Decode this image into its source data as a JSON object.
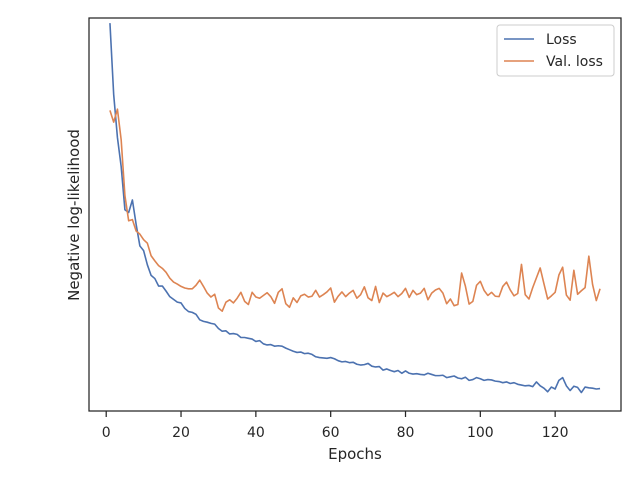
{
  "chart_data": {
    "type": "line",
    "title": "",
    "xlabel": "Epochs",
    "ylabel": "Negative log-likelihood",
    "xlim": [
      -4.6,
      137.6
    ],
    "ylim": [
      0.0,
      1.0
    ],
    "xticks": [
      0,
      20,
      40,
      60,
      80,
      100,
      120
    ],
    "yticks_shown": false,
    "grid": false,
    "legend_position": "top-right",
    "colors": {
      "loss": "#4c72b0",
      "val_loss": "#dd8452",
      "axes": "#262626"
    },
    "x": [
      1,
      2,
      3,
      4,
      5,
      6,
      7,
      8,
      9,
      10,
      11,
      12,
      13,
      14,
      15,
      16,
      17,
      18,
      19,
      20,
      21,
      22,
      23,
      24,
      25,
      26,
      27,
      28,
      29,
      30,
      31,
      32,
      33,
      34,
      35,
      36,
      37,
      38,
      39,
      40,
      41,
      42,
      43,
      44,
      45,
      46,
      47,
      48,
      49,
      50,
      51,
      52,
      53,
      54,
      55,
      56,
      57,
      58,
      59,
      60,
      61,
      62,
      63,
      64,
      65,
      66,
      67,
      68,
      69,
      70,
      71,
      72,
      73,
      74,
      75,
      76,
      77,
      78,
      79,
      80,
      81,
      82,
      83,
      84,
      85,
      86,
      87,
      88,
      89,
      90,
      91,
      92,
      93,
      94,
      95,
      96,
      97,
      98,
      99,
      100,
      101,
      102,
      103,
      104,
      105,
      106,
      107,
      108,
      109,
      110,
      111,
      112,
      113,
      114,
      115,
      116,
      117,
      118,
      119,
      120,
      121,
      122,
      123,
      124,
      125,
      126,
      127,
      128,
      129,
      130,
      131,
      132
    ],
    "series": [
      {
        "name": "Loss",
        "values": [
          0.987,
          0.805,
          0.696,
          0.622,
          0.512,
          0.505,
          0.537,
          0.475,
          0.42,
          0.408,
          0.372,
          0.345,
          0.337,
          0.318,
          0.318,
          0.305,
          0.291,
          0.284,
          0.277,
          0.275,
          0.261,
          0.253,
          0.251,
          0.246,
          0.232,
          0.228,
          0.226,
          0.223,
          0.221,
          0.21,
          0.203,
          0.204,
          0.196,
          0.197,
          0.195,
          0.187,
          0.187,
          0.185,
          0.183,
          0.177,
          0.179,
          0.171,
          0.168,
          0.169,
          0.165,
          0.166,
          0.165,
          0.16,
          0.156,
          0.152,
          0.149,
          0.15,
          0.146,
          0.147,
          0.144,
          0.138,
          0.136,
          0.135,
          0.134,
          0.136,
          0.133,
          0.128,
          0.125,
          0.126,
          0.123,
          0.124,
          0.119,
          0.117,
          0.118,
          0.121,
          0.114,
          0.112,
          0.113,
          0.104,
          0.107,
          0.103,
          0.1,
          0.103,
          0.096,
          0.102,
          0.096,
          0.094,
          0.095,
          0.093,
          0.092,
          0.096,
          0.093,
          0.09,
          0.09,
          0.091,
          0.085,
          0.087,
          0.089,
          0.084,
          0.082,
          0.086,
          0.078,
          0.08,
          0.085,
          0.082,
          0.078,
          0.08,
          0.079,
          0.076,
          0.075,
          0.072,
          0.074,
          0.07,
          0.072,
          0.068,
          0.066,
          0.064,
          0.065,
          0.062,
          0.074,
          0.064,
          0.058,
          0.049,
          0.061,
          0.056,
          0.078,
          0.085,
          0.064,
          0.052,
          0.063,
          0.06,
          0.047,
          0.061,
          0.059,
          0.058,
          0.056,
          0.057
        ]
      },
      {
        "name": "Val. loss",
        "values": [
          0.765,
          0.735,
          0.768,
          0.69,
          0.548,
          0.484,
          0.487,
          0.458,
          0.45,
          0.436,
          0.427,
          0.395,
          0.382,
          0.37,
          0.363,
          0.353,
          0.338,
          0.328,
          0.323,
          0.317,
          0.313,
          0.311,
          0.311,
          0.32,
          0.333,
          0.317,
          0.3,
          0.29,
          0.297,
          0.262,
          0.254,
          0.277,
          0.283,
          0.275,
          0.287,
          0.302,
          0.279,
          0.271,
          0.302,
          0.29,
          0.287,
          0.294,
          0.301,
          0.291,
          0.274,
          0.302,
          0.311,
          0.273,
          0.264,
          0.288,
          0.276,
          0.293,
          0.297,
          0.29,
          0.292,
          0.307,
          0.29,
          0.296,
          0.303,
          0.313,
          0.277,
          0.292,
          0.303,
          0.291,
          0.3,
          0.307,
          0.287,
          0.296,
          0.316,
          0.288,
          0.281,
          0.317,
          0.276,
          0.3,
          0.291,
          0.296,
          0.302,
          0.291,
          0.299,
          0.312,
          0.289,
          0.307,
          0.296,
          0.3,
          0.312,
          0.283,
          0.3,
          0.308,
          0.312,
          0.3,
          0.273,
          0.285,
          0.268,
          0.271,
          0.351,
          0.318,
          0.272,
          0.279,
          0.32,
          0.33,
          0.307,
          0.294,
          0.302,
          0.292,
          0.291,
          0.317,
          0.328,
          0.308,
          0.293,
          0.299,
          0.373,
          0.296,
          0.285,
          0.314,
          0.339,
          0.364,
          0.324,
          0.285,
          0.293,
          0.302,
          0.346,
          0.366,
          0.295,
          0.282,
          0.358,
          0.297,
          0.306,
          0.314,
          0.394,
          0.322,
          0.281,
          0.311
        ]
      }
    ]
  }
}
